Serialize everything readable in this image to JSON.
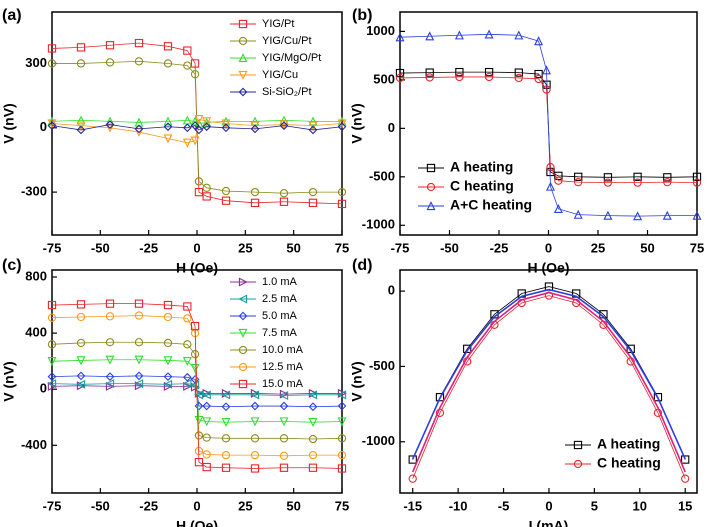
{
  "chart_data": [
    {
      "type": "scatter",
      "label": "(a)",
      "xlabel": "H (Oe)",
      "ylabel": "V (nV)",
      "x": [
        -75,
        -60,
        -45,
        -30,
        -15,
        -5,
        -1,
        1,
        5,
        15,
        30,
        45,
        60,
        75
      ],
      "xlim": [
        -75,
        75
      ],
      "xticks": [
        -75,
        -50,
        -25,
        0,
        25,
        50,
        75
      ],
      "ylim": [
        -500,
        540
      ],
      "yticks": [
        -300,
        0,
        300
      ],
      "legend": "upper right",
      "series": [
        {
          "name": "YIG/Pt",
          "color": "#e8262b",
          "marker": "square",
          "values": [
            370,
            375,
            385,
            395,
            380,
            360,
            300,
            -300,
            -320,
            -340,
            -350,
            -345,
            -350,
            -355
          ]
        },
        {
          "name": "YIG/Cu/Pt",
          "color": "#8c8c1e",
          "marker": "circle",
          "values": [
            300,
            300,
            305,
            310,
            300,
            290,
            250,
            -250,
            -280,
            -295,
            -300,
            -305,
            -300,
            -300
          ]
        },
        {
          "name": "YIG/MgO/Pt",
          "color": "#2ee02e",
          "marker": "triangle-up",
          "values": [
            30,
            35,
            30,
            25,
            30,
            35,
            30,
            20,
            25,
            30,
            30,
            35,
            30,
            30
          ]
        },
        {
          "name": "YIG/Cu",
          "color": "#ff9a1a",
          "marker": "triangle-down",
          "values": [
            20,
            10,
            0,
            -20,
            -50,
            -70,
            -60,
            40,
            30,
            20,
            10,
            15,
            10,
            20
          ]
        },
        {
          "name": "Si-SiO₂/Pt",
          "color": "#24249c",
          "marker": "diamond",
          "values": [
            10,
            -10,
            15,
            -5,
            5,
            0,
            10,
            -10,
            5,
            0,
            -5,
            10,
            -10,
            5
          ]
        }
      ]
    },
    {
      "type": "scatter",
      "label": "(b)",
      "xlabel": "H (Oe)",
      "ylabel": "V (nV)",
      "x": [
        -75,
        -60,
        -45,
        -30,
        -15,
        -5,
        -1,
        1,
        5,
        15,
        30,
        45,
        60,
        75
      ],
      "xlim": [
        -75,
        75
      ],
      "xticks": [
        -75,
        -50,
        -25,
        0,
        25,
        50,
        75
      ],
      "ylim": [
        -1100,
        1200
      ],
      "yticks": [
        -1000,
        -500,
        0,
        500,
        1000
      ],
      "legend": "lower left",
      "series": [
        {
          "name": "A heating",
          "color": "#000000",
          "marker": "square",
          "values": [
            570,
            575,
            580,
            580,
            575,
            560,
            450,
            -450,
            -490,
            -500,
            -505,
            -500,
            -505,
            -500
          ]
        },
        {
          "name": "C heating",
          "color": "#e8262b",
          "marker": "circle",
          "values": [
            520,
            525,
            530,
            530,
            520,
            510,
            400,
            -400,
            -540,
            -555,
            -560,
            -560,
            -555,
            -560
          ]
        },
        {
          "name": "A+C heating",
          "color": "#2a3fe0",
          "marker": "triangle-up",
          "values": [
            940,
            950,
            960,
            970,
            960,
            900,
            600,
            -600,
            -830,
            -890,
            -900,
            -905,
            -900,
            -900
          ]
        }
      ]
    },
    {
      "type": "scatter",
      "label": "(c)",
      "xlabel": "H (Oe)",
      "ylabel": "V (nV)",
      "x": [
        -75,
        -60,
        -45,
        -30,
        -15,
        -5,
        -1,
        1,
        5,
        15,
        30,
        45,
        60,
        75
      ],
      "xlim": [
        -75,
        75
      ],
      "xticks": [
        -75,
        -50,
        -25,
        0,
        25,
        50,
        75
      ],
      "ylim": [
        -740,
        850
      ],
      "yticks": [
        -400,
        0,
        400,
        800
      ],
      "legend": "upper right",
      "series": [
        {
          "name": "1.0  mA",
          "color": "#8e2b9e",
          "marker": "triangle-right",
          "values": [
            20,
            25,
            20,
            25,
            20,
            20,
            15,
            -30,
            -30,
            -30,
            -30,
            -35,
            -30,
            -30
          ]
        },
        {
          "name": "2.5  mA",
          "color": "#1c9e9e",
          "marker": "triangle-left",
          "values": [
            40,
            35,
            40,
            40,
            35,
            40,
            30,
            -40,
            -40,
            -40,
            -40,
            -45,
            -40,
            -40
          ]
        },
        {
          "name": "5.0  mA",
          "color": "#2a3fe0",
          "marker": "diamond",
          "values": [
            90,
            95,
            90,
            95,
            90,
            85,
            70,
            -120,
            -120,
            -125,
            -120,
            -120,
            -125,
            -120
          ]
        },
        {
          "name": "7.5  mA",
          "color": "#2ee02e",
          "marker": "triangle-down",
          "values": [
            200,
            205,
            210,
            210,
            205,
            200,
            150,
            -220,
            -230,
            -235,
            -230,
            -230,
            -235,
            -230
          ]
        },
        {
          "name": "10.0  mA",
          "color": "#8c8c1e",
          "marker": "circle",
          "values": [
            320,
            330,
            335,
            335,
            330,
            320,
            250,
            -330,
            -345,
            -350,
            -350,
            -350,
            -355,
            -350
          ]
        },
        {
          "name": "12.5  mA",
          "color": "#ff9a1a",
          "marker": "circle",
          "values": [
            510,
            515,
            520,
            525,
            515,
            505,
            400,
            -440,
            -465,
            -470,
            -470,
            -475,
            -470,
            -470
          ]
        },
        {
          "name": "15.0  mA",
          "color": "#e8262b",
          "marker": "square",
          "values": [
            600,
            605,
            610,
            610,
            600,
            590,
            450,
            -520,
            -555,
            -560,
            -565,
            -560,
            -560,
            -565
          ]
        }
      ]
    },
    {
      "type": "scatter",
      "label": "(d)",
      "xlabel": "I (mA)",
      "ylabel": "V (nV)",
      "x": [
        -15,
        -12,
        -9,
        -6,
        -3,
        0,
        3,
        6,
        9,
        12,
        15
      ],
      "xlim": [
        -16.4,
        16.3
      ],
      "xticks": [
        -15,
        -10,
        -5,
        0,
        5,
        10,
        15
      ],
      "ylim": [
        -1340,
        140
      ],
      "yticks": [
        -1000,
        -500,
        0
      ],
      "legend": "lower right",
      "series": [
        {
          "name": "A heating",
          "color": "#000000",
          "marker": "square",
          "values": [
            -1118,
            -704,
            -383,
            -154,
            -16,
            30,
            -16,
            -154,
            -383,
            -704,
            -1118
          ]
        },
        {
          "name": "C heating",
          "color": "#e8262b",
          "marker": "circle",
          "values": [
            -1245,
            -808,
            -467,
            -224,
            -79,
            -30,
            -79,
            -224,
            -467,
            -808,
            -1245
          ]
        },
        {
          "color": "#2a3fe0",
          "values": [
            -1115,
            -710,
            -395,
            -170,
            -35,
            10,
            -35,
            -170,
            -395,
            -710,
            -1115
          ]
        },
        {
          "color": "#e0207a",
          "values": [
            -1200,
            -773,
            -439,
            -201,
            -58,
            -10,
            -58,
            -201,
            -439,
            -773,
            -1200
          ]
        }
      ]
    }
  ]
}
